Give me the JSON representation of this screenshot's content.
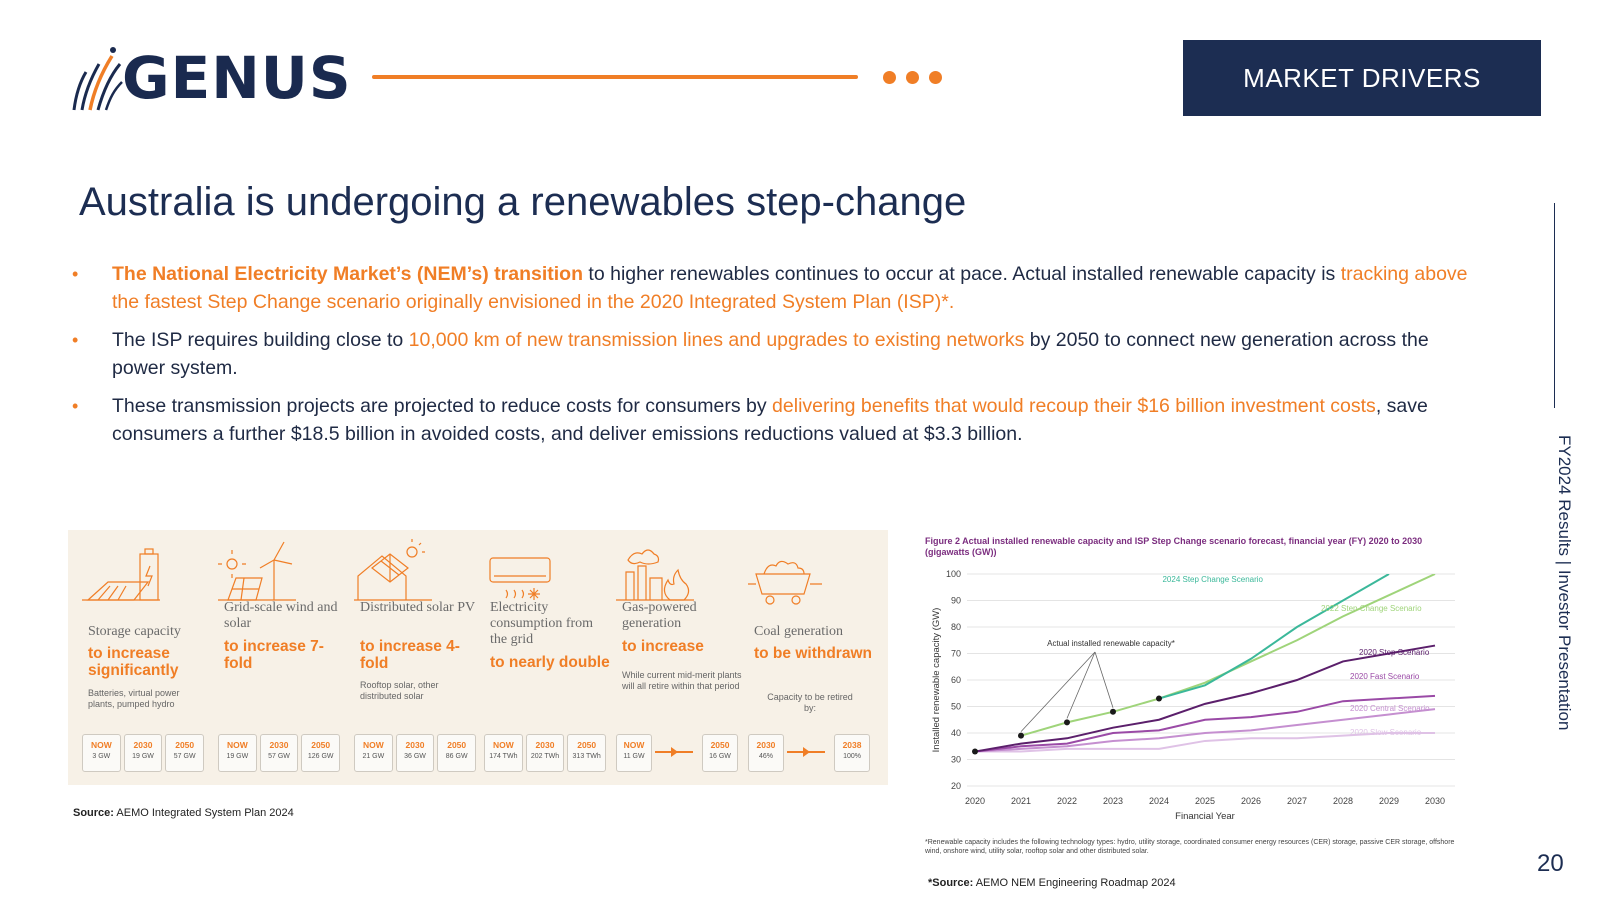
{
  "header": {
    "logo_text": "GENUS",
    "badge": "MARKET DRIVERS",
    "side_label": "FY2024 Results | Investor Presentation",
    "page_number": "20",
    "accent_color": "#f07e26",
    "navy_color": "#1c2d52"
  },
  "title": "Australia is undergoing a renewables step-change",
  "bullets": [
    {
      "hl_bold": "The National Electricity Market’s (NEM’s) transition",
      "text_a": " to higher renewables continues to occur at pace. Actual installed renewable capacity is ",
      "hl_a": "tracking above the fastest Step Change scenario originally envisioned in the 2020 Integrated System Plan (ISP)*."
    },
    {
      "text_a": "The ISP requires building close to ",
      "hl_a": "10,000 km of new transmission lines and upgrades to existing networks",
      "text_b": " by 2050 to connect new generation across the power system."
    },
    {
      "text_a": "These transmission projects are projected to reduce costs for consumers by ",
      "hl_a": "delivering benefits that would recoup their $16 billion investment costs",
      "text_b": ", save consumers a further $18.5 billion in avoided costs, and deliver emissions reductions valued at $3.3 billion."
    }
  ],
  "infographic": {
    "columns": [
      {
        "icon": "battery-storage-icon",
        "label": "Storage capacity",
        "headline": "to increase significantly",
        "note": "Batteries, virtual power plants, pumped hydro",
        "boxes": [
          {
            "year": "NOW",
            "value": "3 GW"
          },
          {
            "year": "2030",
            "value": "19 GW"
          },
          {
            "year": "2050",
            "value": "57 GW"
          }
        ]
      },
      {
        "icon": "wind-solar-icon",
        "label": "Grid-scale wind and solar",
        "headline": "to increase 7-fold",
        "note": "",
        "boxes": [
          {
            "year": "NOW",
            "value": "19 GW"
          },
          {
            "year": "2030",
            "value": "57 GW"
          },
          {
            "year": "2050",
            "value": "126 GW"
          }
        ]
      },
      {
        "icon": "rooftop-solar-icon",
        "label": "Distributed solar PV",
        "headline": "to increase 4-fold",
        "note": "Rooftop solar, other distributed solar",
        "boxes": [
          {
            "year": "NOW",
            "value": "21 GW"
          },
          {
            "year": "2030",
            "value": "36 GW"
          },
          {
            "year": "2050",
            "value": "86 GW"
          }
        ]
      },
      {
        "icon": "air-conditioner-icon",
        "label": "Electricity consumption from the grid",
        "headline": "to nearly double",
        "note": "",
        "boxes": [
          {
            "year": "NOW",
            "value": "174 TWh"
          },
          {
            "year": "2030",
            "value": "202 TWh"
          },
          {
            "year": "2050",
            "value": "313 TWh"
          }
        ]
      },
      {
        "icon": "gas-plant-icon",
        "label": "Gas-powered generation",
        "headline": "to increase",
        "note": "While current mid-merit plants will all retire within that period",
        "boxes": [
          {
            "year": "NOW",
            "value": "11 GW"
          },
          {
            "year": "2050",
            "value": "16 GW"
          }
        ]
      },
      {
        "icon": "coal-cart-icon",
        "label": "Coal generation",
        "headline": "to be withdrawn",
        "note": "Capacity to be retired by:",
        "boxes": [
          {
            "year": "2030",
            "value": "46%"
          },
          {
            "year": "2038",
            "value": "100%"
          }
        ]
      }
    ],
    "source_label": "Source:",
    "source_text": " AEMO Integrated System Plan 2024"
  },
  "chart_data": {
    "type": "line",
    "title": "Figure 2 Actual installed renewable capacity and ISP Step Change scenario forecast, financial year (FY) 2020 to 2030 (gigawatts (GW))",
    "ylabel": "Installed renewable capacity (GW)",
    "xlabel": "Financial Year",
    "x": [
      2020,
      2021,
      2022,
      2023,
      2024,
      2025,
      2026,
      2027,
      2028,
      2029,
      2030
    ],
    "ylim": [
      20,
      100
    ],
    "yticks": [
      20,
      30,
      40,
      50,
      60,
      70,
      80,
      90,
      100
    ],
    "grid": true,
    "annotation": "Actual installed renewable capacity*",
    "actual": {
      "name": "Actual installed renewable capacity*",
      "x": [
        2020,
        2021,
        2022,
        2023,
        2024
      ],
      "values": [
        33,
        39,
        44,
        48,
        53
      ]
    },
    "series": [
      {
        "name": "2024 Step Change Scenario",
        "color": "#3bb89a",
        "x": [
          2024,
          2025,
          2026,
          2027,
          2028,
          2029
        ],
        "values": [
          53,
          58,
          68,
          80,
          90,
          100
        ]
      },
      {
        "name": "2022 Step Change Scenario",
        "color": "#9fd47a",
        "x": [
          2021,
          2022,
          2023,
          2024,
          2025,
          2026,
          2027,
          2028,
          2029,
          2030
        ],
        "values": [
          39,
          44,
          48,
          53,
          59,
          67,
          75,
          84,
          92,
          100
        ]
      },
      {
        "name": "2020 Step Scenario",
        "color": "#5b1f6b",
        "x": [
          2020,
          2021,
          2022,
          2023,
          2024,
          2025,
          2026,
          2027,
          2028,
          2029,
          2030
        ],
        "values": [
          33,
          36,
          38,
          42,
          45,
          51,
          55,
          60,
          67,
          70,
          73
        ]
      },
      {
        "name": "2020 Fast Scenario",
        "color": "#9a4aa6",
        "x": [
          2020,
          2021,
          2022,
          2023,
          2024,
          2025,
          2026,
          2027,
          2028,
          2029,
          2030
        ],
        "values": [
          33,
          35,
          36,
          40,
          41,
          45,
          46,
          48,
          52,
          53,
          54
        ]
      },
      {
        "name": "2020 Central Scenario",
        "color": "#c58fd0",
        "x": [
          2020,
          2021,
          2022,
          2023,
          2024,
          2025,
          2026,
          2027,
          2028,
          2029,
          2030
        ],
        "values": [
          33,
          34,
          35,
          37,
          38,
          40,
          41,
          43,
          45,
          47,
          49
        ]
      },
      {
        "name": "2020 Slow Scenario",
        "color": "#dfc2e6",
        "x": [
          2020,
          2021,
          2022,
          2023,
          2024,
          2025,
          2026,
          2027,
          2028,
          2029,
          2030
        ],
        "values": [
          33,
          33,
          34,
          34,
          34,
          37,
          38,
          38,
          39,
          40,
          40
        ]
      }
    ],
    "footnote": "*Renewable capacity includes the following technology types: hydro, utility storage, coordinated consumer energy resources (CER) storage, passive CER storage, offshore wind, onshore wind, utility solar, rooftop solar and other distributed solar.",
    "source_label": "*Source:",
    "source_text": " AEMO NEM Engineering Roadmap 2024"
  }
}
